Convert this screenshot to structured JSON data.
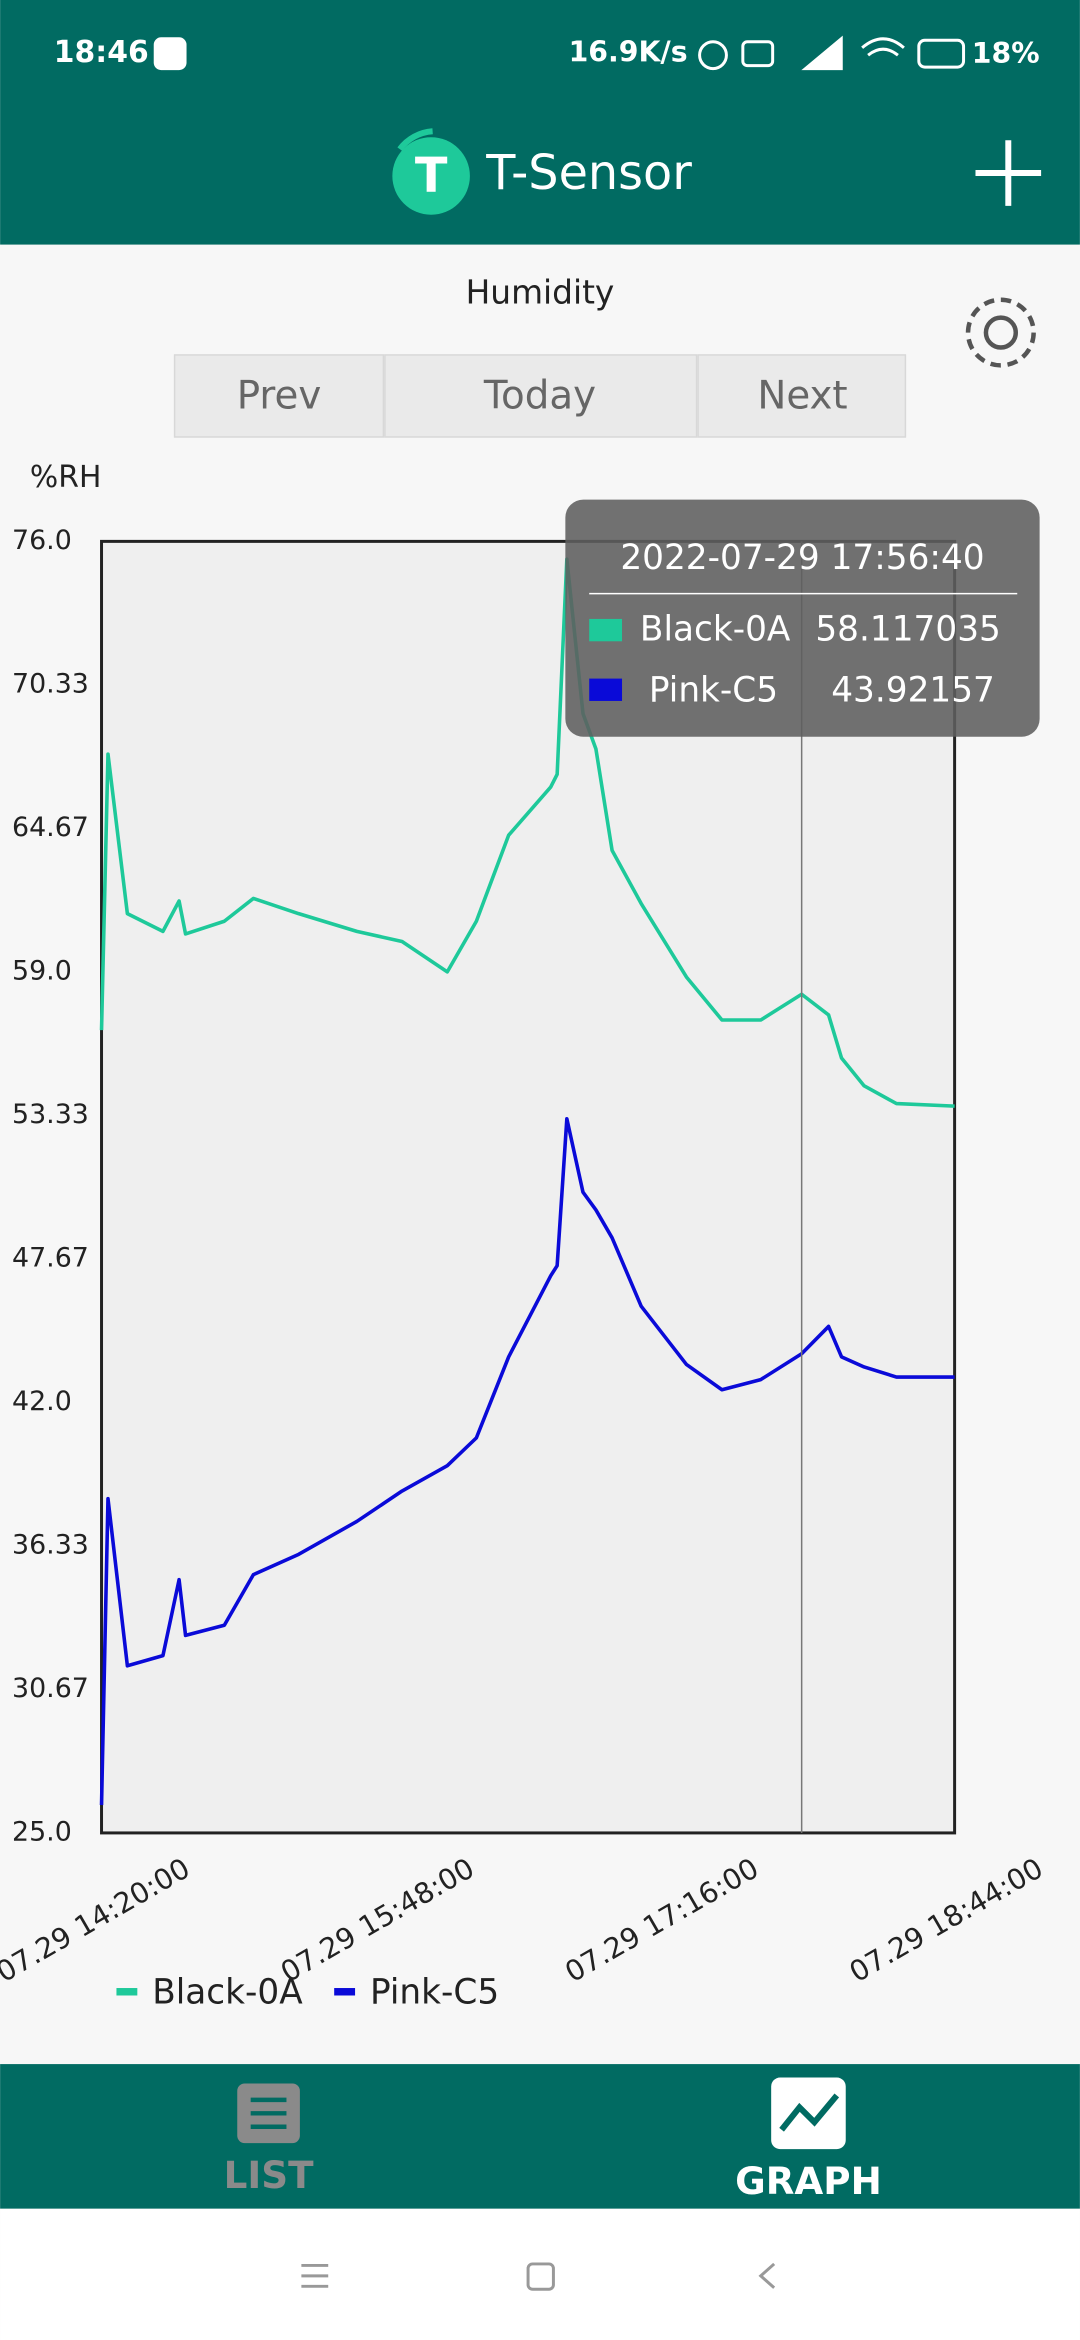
{
  "status_bar": {
    "time": "18:46",
    "speed": "16.9K/s",
    "battery": "18%"
  },
  "app_bar": {
    "title": "T-Sensor"
  },
  "controls": {
    "prev": "Prev",
    "today": "Today",
    "next": "Next"
  },
  "chart_data": {
    "type": "line",
    "title": "Humidity",
    "y_label": "%RH",
    "x": [
      "07.29 14:20:00",
      "07.29 14:22:00",
      "07.29 14:28:00",
      "07.29 14:39:00",
      "07.29 14:44:00",
      "07.29 14:46:00",
      "07.29 14:58:00",
      "07.29 15:07:00",
      "07.29 15:21:00",
      "07.29 15:39:00",
      "07.29 15:53:00",
      "07.29 16:07:00",
      "07.29 16:16:00",
      "07.29 16:26:00",
      "07.29 16:39:00",
      "07.29 16:41:00",
      "07.29 16:44:00",
      "07.29 16:49:00",
      "07.29 16:53:00",
      "07.29 16:58:00",
      "07.29 17:07:00",
      "07.29 17:21:00",
      "07.29 17:32:00",
      "07.29 17:44:00",
      "07.29 17:56:40",
      "07.29 18:05:00",
      "07.29 18:09:00",
      "07.29 18:16:00",
      "07.29 18:26:00",
      "07.29 18:44:00"
    ],
    "series": [
      {
        "name": "Black-0A",
        "color": "#1ec99a",
        "values": [
          56.7,
          67.6,
          61.3,
          60.6,
          61.8,
          60.5,
          61.0,
          61.9,
          61.3,
          60.6,
          60.2,
          59.0,
          61.0,
          64.4,
          66.3,
          66.8,
          75.3,
          69.2,
          67.8,
          63.8,
          61.7,
          58.8,
          57.1,
          57.1,
          58.117035,
          57.3,
          55.6,
          54.5,
          53.8,
          53.7
        ]
      },
      {
        "name": "Pink-C5",
        "color": "#0a0ad8",
        "values": [
          26.1,
          38.2,
          31.6,
          32.0,
          35.0,
          32.8,
          33.2,
          35.2,
          36.0,
          37.3,
          38.5,
          39.5,
          40.6,
          43.8,
          47.0,
          47.4,
          53.2,
          50.3,
          49.6,
          48.5,
          45.8,
          43.5,
          42.5,
          42.9,
          43.92157,
          45.0,
          43.8,
          43.4,
          43.0,
          43.0
        ]
      }
    ],
    "xlim": [
      "07.29 14:20:00",
      "07.29 18:44:00"
    ],
    "xticks": [
      "07.29 14:20:00",
      "07.29 15:48:00",
      "07.29 17:16:00",
      "07.29 18:44:00"
    ],
    "ylim": [
      25,
      76
    ],
    "yticks": [
      {
        "value": 25,
        "label": "25.0"
      },
      30.67,
      36.33,
      {
        "value": 42,
        "label": "42.0"
      },
      47.67,
      53.33,
      {
        "value": 59,
        "label": "59.0"
      },
      64.67,
      70.33,
      {
        "value": 76,
        "label": "76.0"
      }
    ],
    "tooltip": {
      "title": "2022-07-29 17:56:40"
    }
  },
  "bottom_nav": {
    "list": "LIST",
    "graph": "GRAPH"
  }
}
